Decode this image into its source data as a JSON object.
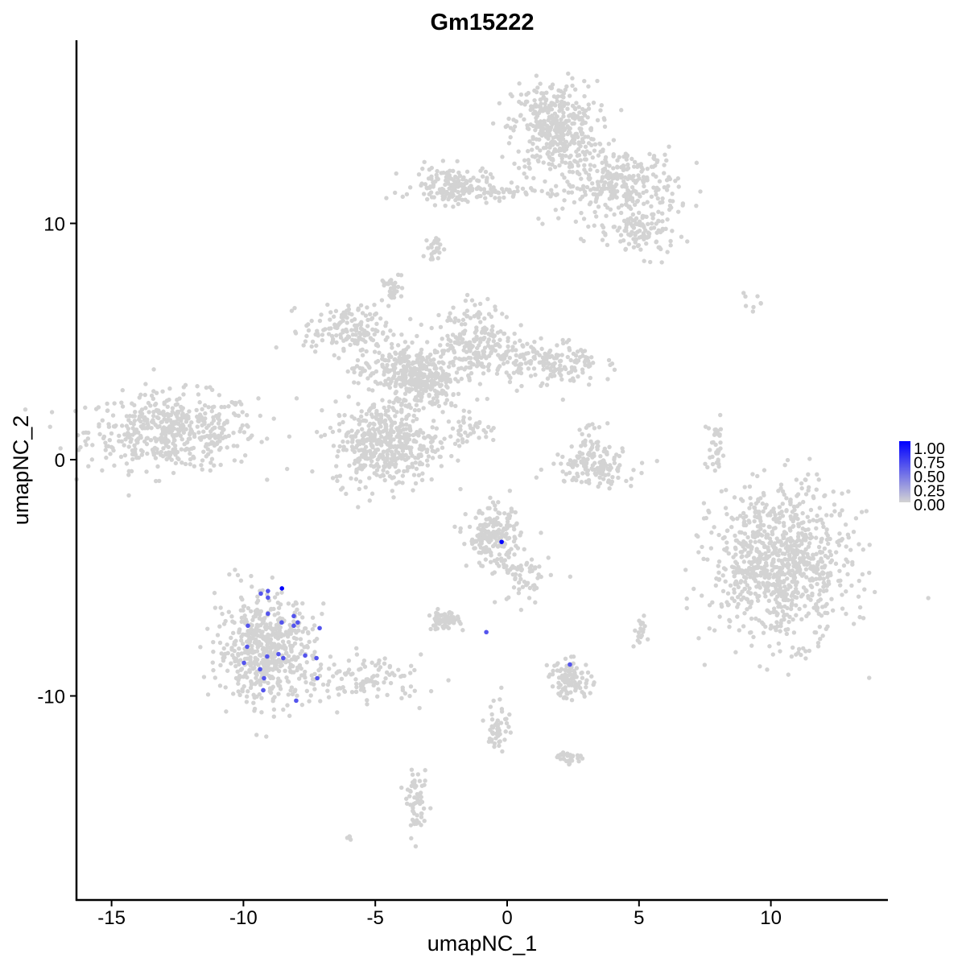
{
  "chart_data": {
    "type": "scatter",
    "title": "Gm15222",
    "xlabel": "umapNC_1",
    "ylabel": "umapNC_2",
    "xlim": [
      -16.3,
      14.4
    ],
    "ylim": [
      -18.7,
      17.8
    ],
    "x_ticks": [
      -15,
      -10,
      -5,
      0,
      5,
      10
    ],
    "y_ticks": [
      -10,
      0,
      10
    ],
    "grid": false,
    "legend": {
      "placement": "right",
      "type": "colorbar",
      "low_color": "#d3d3d3",
      "high_color": "#0000ff",
      "ticks": [
        "1.00",
        "0.75",
        "0.50",
        "0.25",
        "0.00"
      ]
    },
    "background_color": "#d3d3d3",
    "background_clusters": [
      {
        "cx": -12.7,
        "cy": 1.2,
        "sx": 1.6,
        "sy": 0.8,
        "n": 500
      },
      {
        "cx": 1.8,
        "cy": 14.0,
        "sx": 0.8,
        "sy": 1.0,
        "n": 400
      },
      {
        "cx": 4.3,
        "cy": 11.6,
        "sx": 1.1,
        "sy": 0.8,
        "n": 300
      },
      {
        "cx": 5.2,
        "cy": 9.6,
        "sx": 0.6,
        "sy": 0.5,
        "n": 100
      },
      {
        "cx": -2.1,
        "cy": 11.6,
        "sx": 0.7,
        "sy": 0.4,
        "n": 150
      },
      {
        "cx": -0.5,
        "cy": 11.3,
        "sx": 1.6,
        "sy": 0.15,
        "n": 60
      },
      {
        "cx": -6.1,
        "cy": 5.5,
        "sx": 0.8,
        "sy": 0.5,
        "n": 150
      },
      {
        "cx": -4.6,
        "cy": 0.7,
        "sx": 1.0,
        "sy": 0.9,
        "n": 450
      },
      {
        "cx": -4.0,
        "cy": 3.8,
        "sx": 0.9,
        "sy": 0.6,
        "n": 250
      },
      {
        "cx": -1.2,
        "cy": 5.0,
        "sx": 0.7,
        "sy": 0.8,
        "n": 220
      },
      {
        "cx": 1.5,
        "cy": 4.1,
        "sx": 1.0,
        "sy": 0.5,
        "n": 180
      },
      {
        "cx": -3.0,
        "cy": 3.0,
        "sx": 0.6,
        "sy": 0.5,
        "n": 150
      },
      {
        "cx": 3.3,
        "cy": -0.3,
        "sx": 0.8,
        "sy": 0.4,
        "n": 120
      },
      {
        "cx": 3.1,
        "cy": 0.7,
        "sx": 0.3,
        "sy": 0.4,
        "n": 40
      },
      {
        "cx": 10.4,
        "cy": -4.4,
        "sx": 1.3,
        "sy": 1.6,
        "n": 900
      },
      {
        "cx": -9.2,
        "cy": -8.0,
        "sx": 0.9,
        "sy": 1.1,
        "n": 550
      },
      {
        "cx": -5.5,
        "cy": -9.3,
        "sx": 1.2,
        "sy": 0.5,
        "n": 120
      },
      {
        "cx": -0.5,
        "cy": -3.3,
        "sx": 0.5,
        "sy": 0.6,
        "n": 200
      },
      {
        "cx": 0.6,
        "cy": -5.0,
        "sx": 0.5,
        "sy": 0.6,
        "n": 60
      },
      {
        "cx": -2.4,
        "cy": -6.8,
        "sx": 0.3,
        "sy": 0.2,
        "n": 60
      },
      {
        "cx": 2.4,
        "cy": -9.3,
        "sx": 0.4,
        "sy": 0.4,
        "n": 100
      },
      {
        "cx": -0.3,
        "cy": -11.2,
        "sx": 0.2,
        "sy": 0.6,
        "n": 50
      },
      {
        "cx": 2.3,
        "cy": -12.6,
        "sx": 0.3,
        "sy": 0.15,
        "n": 30
      },
      {
        "cx": -3.4,
        "cy": -14.6,
        "sx": 0.2,
        "sy": 0.6,
        "n": 60
      },
      {
        "cx": 7.9,
        "cy": 0.4,
        "sx": 0.2,
        "sy": 0.6,
        "n": 35
      },
      {
        "cx": -1.4,
        "cy": 1.3,
        "sx": 0.5,
        "sy": 0.3,
        "n": 40
      },
      {
        "cx": -2.7,
        "cy": 8.9,
        "sx": 0.15,
        "sy": 0.3,
        "n": 25
      },
      {
        "cx": -4.4,
        "cy": 7.3,
        "sx": 0.2,
        "sy": 0.3,
        "n": 30
      },
      {
        "cx": 5.0,
        "cy": -7.3,
        "sx": 0.15,
        "sy": 0.3,
        "n": 20
      },
      {
        "cx": 9.3,
        "cy": 6.7,
        "sx": 0.3,
        "sy": 0.15,
        "n": 8
      },
      {
        "cx": -6.0,
        "cy": -16.0,
        "sx": 0.1,
        "sy": 0.1,
        "n": 4
      }
    ],
    "expressing_points": [
      {
        "x": -8.54,
        "y": -5.45,
        "value": 1.0
      },
      {
        "x": -9.34,
        "y": -5.67,
        "value": 0.6
      },
      {
        "x": -9.07,
        "y": -5.56,
        "value": 0.6
      },
      {
        "x": -9.07,
        "y": -5.84,
        "value": 0.6
      },
      {
        "x": -9.07,
        "y": -6.52,
        "value": 0.6
      },
      {
        "x": -8.09,
        "y": -6.62,
        "value": 0.6
      },
      {
        "x": -8.55,
        "y": -6.89,
        "value": 0.6
      },
      {
        "x": -7.94,
        "y": -6.89,
        "value": 0.6
      },
      {
        "x": -8.09,
        "y": -7.03,
        "value": 0.6
      },
      {
        "x": -9.83,
        "y": -7.03,
        "value": 0.6
      },
      {
        "x": -7.11,
        "y": -7.13,
        "value": 0.6
      },
      {
        "x": -9.86,
        "y": -7.92,
        "value": 0.6
      },
      {
        "x": -8.67,
        "y": -8.23,
        "value": 0.6
      },
      {
        "x": -9.1,
        "y": -8.33,
        "value": 0.6
      },
      {
        "x": -8.49,
        "y": -8.4,
        "value": 0.6
      },
      {
        "x": -7.66,
        "y": -8.29,
        "value": 0.6
      },
      {
        "x": -7.23,
        "y": -8.4,
        "value": 0.6
      },
      {
        "x": -9.98,
        "y": -8.6,
        "value": 0.6
      },
      {
        "x": -9.37,
        "y": -8.87,
        "value": 0.6
      },
      {
        "x": -9.22,
        "y": -9.25,
        "value": 0.6
      },
      {
        "x": -7.2,
        "y": -9.25,
        "value": 0.6
      },
      {
        "x": -9.25,
        "y": -9.76,
        "value": 0.6
      },
      {
        "x": -8.0,
        "y": -10.2,
        "value": 0.6
      },
      {
        "x": -0.21,
        "y": -3.48,
        "value": 1.0
      },
      {
        "x": -0.79,
        "y": -7.3,
        "value": 0.6
      },
      {
        "x": 2.38,
        "y": -8.67,
        "value": 0.6
      }
    ]
  }
}
